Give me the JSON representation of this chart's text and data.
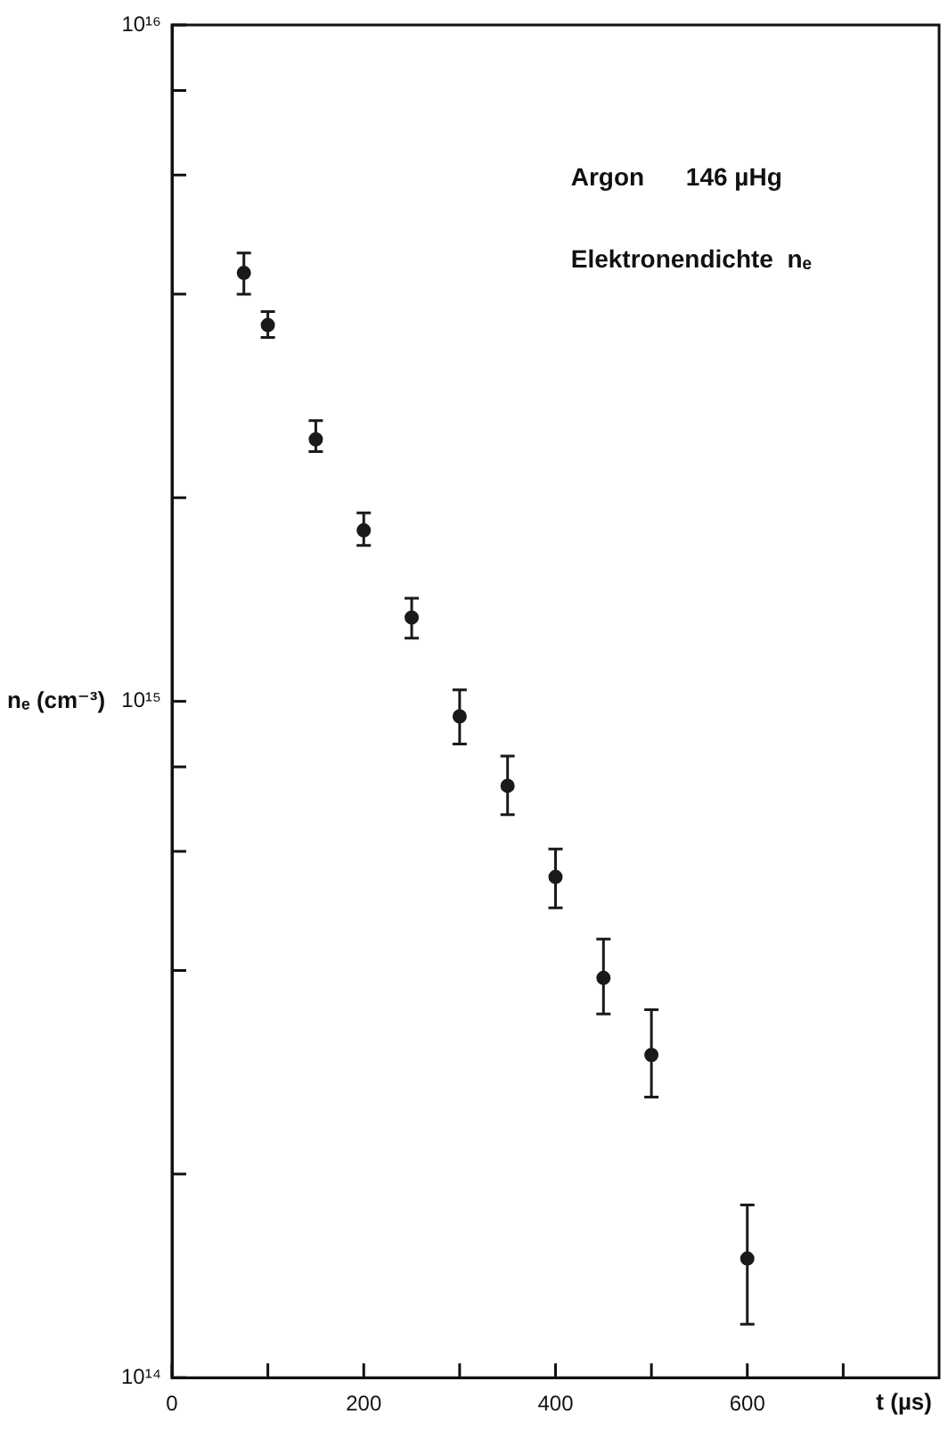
{
  "chart_data": {
    "type": "scatter",
    "xlabel": "t (µs)",
    "ylabel": "nₑ (cm⁻³)",
    "annotations": [
      "Argon      146 µHg",
      "Elektronendichte  nₑ"
    ],
    "x": [
      75,
      100,
      150,
      200,
      250,
      300,
      350,
      400,
      450,
      500,
      600
    ],
    "series": [
      {
        "color": "#1a1a1a",
        "values": [
          4300000000000000.0,
          3600000000000000.0,
          2440000000000000.0,
          1790000000000000.0,
          1330000000000000.0,
          950000000000000.0,
          750000000000000.0,
          550000000000000.0,
          390000000000000.0,
          300000000000000.0,
          150000000000000.0
        ],
        "errors": [
          [
            4000000000000000.0,
            4600000000000000.0
          ],
          [
            3450000000000000.0,
            3770000000000000.0
          ],
          [
            2340000000000000.0,
            2600000000000000.0
          ],
          [
            1700000000000000.0,
            1900000000000000.0
          ],
          [
            1240000000000000.0,
            1420000000000000.0
          ],
          [
            865000000000000.0,
            1040000000000000.0
          ],
          [
            680000000000000.0,
            830000000000000.0
          ],
          [
            495000000000000.0,
            605000000000000.0
          ],
          [
            345000000000000.0,
            445000000000000.0
          ],
          [
            260000000000000.0,
            350000000000000.0
          ],
          [
            120000000000000.0,
            180000000000000.0
          ]
        ]
      }
    ],
    "marker": "circle",
    "log": "y",
    "xlim": [
      0,
      800
    ],
    "xticks": [
      0,
      {
        "value": 100,
        "label": null
      },
      200,
      {
        "value": 300,
        "label": null
      },
      400,
      {
        "value": 500,
        "label": null
      },
      600,
      {
        "value": 700,
        "label": null
      }
    ],
    "ylim": [
      100000000000000.0,
      1e+16
    ],
    "yticks": [
      {
        "value": 100000000000000.0,
        "label": "10¹⁴"
      },
      {
        "value": 200000000000000.0,
        "label": null
      },
      {
        "value": 400000000000000.0,
        "label": null
      },
      {
        "value": 600000000000000.0,
        "label": null
      },
      {
        "value": 800000000000000.0,
        "label": null
      },
      {
        "value": 1000000000000000.0,
        "label": "10¹⁵"
      },
      {
        "value": 2000000000000000.0,
        "label": null
      },
      {
        "value": 4000000000000000.0,
        "label": null
      },
      {
        "value": 6000000000000000.0,
        "label": null
      },
      {
        "value": 8000000000000000.0,
        "label": null
      },
      {
        "value": 1e+16,
        "label": "10¹⁶"
      }
    ]
  }
}
